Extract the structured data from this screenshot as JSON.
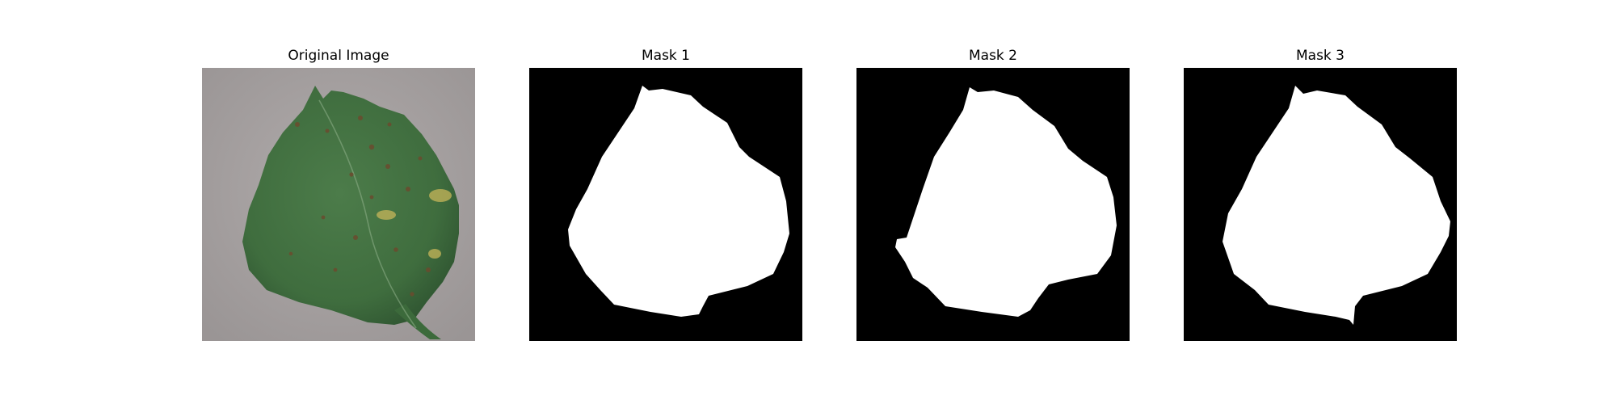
{
  "figure": {
    "panels": [
      {
        "title": "Original Image",
        "kind": "photo"
      },
      {
        "title": "Mask 1",
        "kind": "mask"
      },
      {
        "title": "Mask 2",
        "kind": "mask"
      },
      {
        "title": "Mask 3",
        "kind": "mask"
      }
    ],
    "colors": {
      "mask_background": "#000000",
      "mask_foreground": "#ffffff",
      "photo_background": "#a6a1a1",
      "leaf_green": "#3f6d3e",
      "leaf_dark": "#2e5330",
      "lesion": "#6b4b2e",
      "chlorosis": "#c7b65a"
    }
  }
}
